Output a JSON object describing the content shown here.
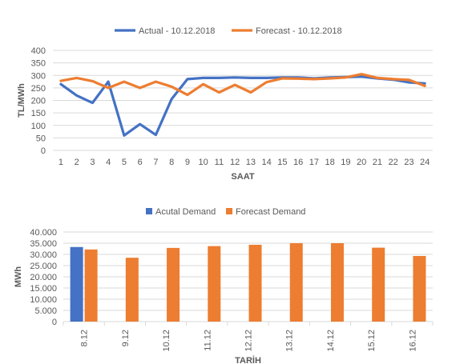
{
  "chart_data": [
    {
      "type": "line",
      "xlabel": "SAAT",
      "ylabel": "TL/MWh",
      "ylim": [
        0,
        400
      ],
      "yticks": [
        "0",
        "50",
        "100",
        "150",
        "200",
        "250",
        "300",
        "350",
        "400"
      ],
      "x": [
        1,
        2,
        3,
        4,
        5,
        6,
        7,
        8,
        9,
        10,
        11,
        12,
        13,
        14,
        15,
        16,
        17,
        18,
        19,
        20,
        21,
        22,
        23,
        24
      ],
      "grid": true,
      "legend_position": "top",
      "series": [
        {
          "name": "Actual - 10.12.2018",
          "color": "#4472C4",
          "values": [
            265,
            220,
            190,
            275,
            60,
            105,
            62,
            205,
            285,
            290,
            290,
            292,
            290,
            290,
            292,
            292,
            288,
            292,
            293,
            295,
            288,
            283,
            272,
            268
          ]
        },
        {
          "name": "Forecast - 10.12.2018",
          "color": "#ED7D31",
          "values": [
            278,
            290,
            277,
            250,
            275,
            250,
            275,
            255,
            222,
            265,
            232,
            262,
            232,
            273,
            288,
            287,
            285,
            288,
            292,
            305,
            290,
            285,
            282,
            258
          ]
        }
      ]
    },
    {
      "type": "bar",
      "xlabel": "TARİH",
      "ylabel": "MWh",
      "ylim": [
        0,
        40000
      ],
      "yticks": [
        "0",
        "5.000",
        "10.000",
        "15.000",
        "20.000",
        "25.000",
        "30.000",
        "35.000",
        "40.000"
      ],
      "categories": [
        "8.12",
        "9.12",
        "10.12",
        "11.12",
        "12.12",
        "13.12",
        "14.12",
        "15.12",
        "16.12"
      ],
      "grid": true,
      "legend_position": "top",
      "series": [
        {
          "name": "Acutal Demand",
          "color": "#4472C4",
          "values": [
            33300,
            null,
            null,
            null,
            null,
            null,
            null,
            null,
            null
          ]
        },
        {
          "name": "Forecast Demand",
          "color": "#ED7D31",
          "values": [
            32200,
            28500,
            32900,
            33700,
            34300,
            35000,
            35000,
            33000,
            29300
          ]
        }
      ]
    }
  ]
}
